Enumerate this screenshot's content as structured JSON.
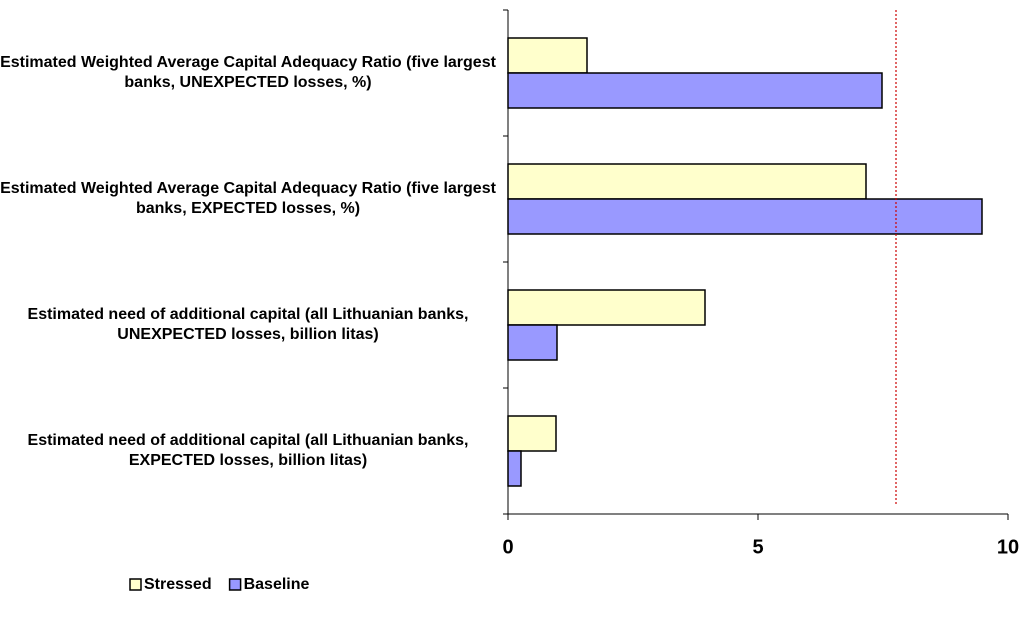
{
  "chart_data": {
    "type": "hbar",
    "categories": [
      "Estimated Weighted Average Capital Adequacy Ratio (five largest banks, UNEXPECTED losses, %)",
      "Estimated Weighted Average Capital Adequacy Ratio (five largest banks, EXPECTED losses, %)",
      "Estimated need of additional capital (all Lithuanian banks, UNEXPECTED losses, billion litas)",
      "Estimated need of additional capital (all Lithuanian banks, EXPECTED losses, billion litas)"
    ],
    "series": [
      {
        "name": "Stressed",
        "color": "#FFFFCC",
        "values": [
          1.58,
          7.16,
          3.94,
          0.96
        ]
      },
      {
        "name": "Baseline",
        "color": "#9999FF",
        "values": [
          7.48,
          9.48,
          0.98,
          0.26
        ]
      }
    ],
    "xlim": [
      0,
      10
    ],
    "xticks": [
      0,
      5,
      10
    ],
    "reference_line": 7.76,
    "reference_color": "#CC0000"
  }
}
